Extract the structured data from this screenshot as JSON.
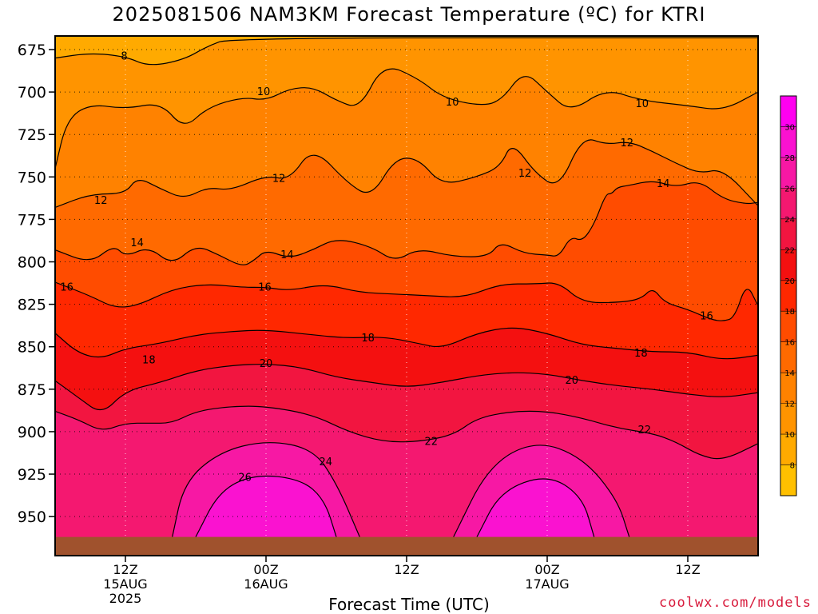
{
  "chart_data": {
    "type": "heatmap",
    "title": "2025081506 NAM3KM Forecast Temperature (ºC) for KTRI",
    "xlabel": "Forecast Time (UTC)",
    "ylabel": "",
    "credit": "coolwx.com/models",
    "x_ticks": [
      {
        "hours": 6,
        "lines": [
          "12Z",
          "15AUG",
          "2025"
        ]
      },
      {
        "hours": 18,
        "lines": [
          "00Z",
          "16AUG"
        ]
      },
      {
        "hours": 30,
        "lines": [
          "12Z"
        ]
      },
      {
        "hours": 42,
        "lines": [
          "00Z",
          "17AUG"
        ]
      },
      {
        "hours": 54,
        "lines": [
          "12Z"
        ]
      }
    ],
    "xlim_hours": [
      0,
      60
    ],
    "y_ticks": [
      675,
      700,
      725,
      750,
      775,
      800,
      825,
      850,
      875,
      900,
      925,
      950
    ],
    "ylim": [
      667,
      973
    ],
    "y_inverted": true,
    "grid": "dotted",
    "colorbar": {
      "labels": [
        "8",
        "10",
        "12",
        "14",
        "16",
        "18",
        "20",
        "22",
        "24",
        "26",
        "28",
        "30"
      ],
      "colors": [
        "#ffc000",
        "#ffaa00",
        "#ff9400",
        "#ff8200",
        "#ff6a00",
        "#ff4c00",
        "#ff2800",
        "#f41010",
        "#f21540",
        "#f41870",
        "#f718a4",
        "#fa12d0",
        "#ff00f0"
      ]
    },
    "contour_levels": [
      "8",
      "10",
      "12",
      "14",
      "16",
      "18",
      "20",
      "22",
      "24",
      "26"
    ],
    "contours": [
      {
        "level": 8,
        "points": [
          [
            0,
            680
          ],
          [
            3,
            677
          ],
          [
            6,
            679
          ],
          [
            8,
            685
          ],
          [
            11,
            681
          ],
          [
            13,
            673
          ],
          [
            15,
            668
          ],
          [
            60,
            668
          ]
        ]
      },
      {
        "level": 10,
        "points": [
          [
            0,
            745
          ],
          [
            1,
            716
          ],
          [
            3,
            707
          ],
          [
            6,
            710
          ],
          [
            9,
            706
          ],
          [
            11,
            722
          ],
          [
            13,
            709
          ],
          [
            16,
            703
          ],
          [
            18,
            705
          ],
          [
            20,
            698
          ],
          [
            22,
            697
          ],
          [
            24,
            705
          ],
          [
            26,
            710
          ],
          [
            28,
            683
          ],
          [
            31,
            692
          ],
          [
            33,
            703
          ],
          [
            36,
            708
          ],
          [
            38,
            706
          ],
          [
            40,
            687
          ],
          [
            42,
            700
          ],
          [
            44,
            712
          ],
          [
            47,
            698
          ],
          [
            50,
            705
          ],
          [
            54,
            708
          ],
          [
            57,
            711
          ],
          [
            60,
            700
          ]
        ]
      },
      {
        "level": 12,
        "points": [
          [
            0,
            768
          ],
          [
            3,
            760
          ],
          [
            6,
            760
          ],
          [
            7,
            750
          ],
          [
            9,
            757
          ],
          [
            11,
            763
          ],
          [
            13,
            756
          ],
          [
            15,
            758
          ],
          [
            18,
            749
          ],
          [
            20,
            752
          ],
          [
            22,
            732
          ],
          [
            25,
            754
          ],
          [
            27,
            762
          ],
          [
            29,
            739
          ],
          [
            31,
            739
          ],
          [
            33,
            755
          ],
          [
            36,
            750
          ],
          [
            38,
            744
          ],
          [
            39,
            729
          ],
          [
            41,
            748
          ],
          [
            43,
            757
          ],
          [
            45,
            726
          ],
          [
            47,
            731
          ],
          [
            49,
            729
          ],
          [
            51,
            735
          ],
          [
            53,
            742
          ],
          [
            55,
            748
          ],
          [
            57,
            745
          ],
          [
            60,
            767
          ]
        ]
      },
      {
        "level": 14,
        "points": [
          [
            0,
            793
          ],
          [
            3,
            801
          ],
          [
            5,
            790
          ],
          [
            6,
            797
          ],
          [
            8,
            791
          ],
          [
            10,
            802
          ],
          [
            12,
            790
          ],
          [
            14,
            796
          ],
          [
            16,
            803
          ],
          [
            17,
            799
          ],
          [
            18,
            793
          ],
          [
            20,
            798
          ],
          [
            22,
            793
          ],
          [
            24,
            786
          ],
          [
            27,
            791
          ],
          [
            29,
            800
          ],
          [
            31,
            792
          ],
          [
            34,
            797
          ],
          [
            37,
            797
          ],
          [
            38,
            788
          ],
          [
            40,
            795
          ],
          [
            42,
            796
          ],
          [
            43,
            797
          ],
          [
            44,
            785
          ],
          [
            45,
            788
          ],
          [
            46,
            778
          ],
          [
            47,
            760
          ],
          [
            47.5,
            760
          ],
          [
            48,
            756
          ],
          [
            49,
            755
          ],
          [
            51,
            752
          ],
          [
            53,
            756
          ],
          [
            55,
            752
          ],
          [
            57,
            763
          ],
          [
            59,
            766
          ],
          [
            60,
            765
          ]
        ]
      },
      {
        "level": 16,
        "points": [
          [
            0,
            812
          ],
          [
            3,
            820
          ],
          [
            5,
            827
          ],
          [
            7,
            826
          ],
          [
            10,
            816
          ],
          [
            13,
            813
          ],
          [
            16,
            815
          ],
          [
            18,
            815
          ],
          [
            20,
            817
          ],
          [
            23,
            813
          ],
          [
            26,
            818
          ],
          [
            29,
            819
          ],
          [
            32,
            820
          ],
          [
            35,
            821
          ],
          [
            38,
            813
          ],
          [
            41,
            813
          ],
          [
            43,
            812
          ],
          [
            45,
            824
          ],
          [
            48,
            824
          ],
          [
            50,
            822
          ],
          [
            51,
            815
          ],
          [
            52,
            824
          ],
          [
            54,
            828
          ],
          [
            56,
            834
          ],
          [
            57,
            835
          ],
          [
            58,
            833
          ],
          [
            59,
            812
          ],
          [
            60,
            826
          ]
        ]
      },
      {
        "level": 18,
        "points": [
          [
            0,
            842
          ],
          [
            2,
            854
          ],
          [
            4,
            857
          ],
          [
            6,
            851
          ],
          [
            9,
            848
          ],
          [
            12,
            843
          ],
          [
            15,
            841
          ],
          [
            18,
            840
          ],
          [
            22,
            843
          ],
          [
            25,
            845
          ],
          [
            28,
            844
          ],
          [
            31,
            848
          ],
          [
            33,
            851
          ],
          [
            36,
            842
          ],
          [
            39,
            838
          ],
          [
            42,
            842
          ],
          [
            45,
            849
          ],
          [
            48,
            851
          ],
          [
            51,
            853
          ],
          [
            54,
            853
          ],
          [
            57,
            858
          ],
          [
            60,
            855
          ]
        ]
      },
      {
        "level": 20,
        "points": [
          [
            0,
            870
          ],
          [
            2,
            880
          ],
          [
            4,
            890
          ],
          [
            6,
            876
          ],
          [
            9,
            871
          ],
          [
            12,
            864
          ],
          [
            15,
            861
          ],
          [
            18,
            860
          ],
          [
            21,
            862
          ],
          [
            24,
            868
          ],
          [
            27,
            871
          ],
          [
            30,
            874
          ],
          [
            33,
            871
          ],
          [
            36,
            867
          ],
          [
            39,
            865
          ],
          [
            42,
            866
          ],
          [
            45,
            870
          ],
          [
            48,
            873
          ],
          [
            51,
            875
          ],
          [
            54,
            878
          ],
          [
            57,
            880
          ],
          [
            60,
            877
          ]
        ]
      },
      {
        "level": 22,
        "points": [
          [
            0,
            888
          ],
          [
            2,
            893
          ],
          [
            4,
            900
          ],
          [
            6,
            895
          ],
          [
            8,
            895
          ],
          [
            10,
            895
          ],
          [
            12,
            888
          ],
          [
            15,
            885
          ],
          [
            18,
            885
          ],
          [
            22,
            890
          ],
          [
            25,
            900
          ],
          [
            28,
            906
          ],
          [
            31,
            906
          ],
          [
            34,
            902
          ],
          [
            36,
            892
          ],
          [
            39,
            888
          ],
          [
            42,
            888
          ],
          [
            45,
            892
          ],
          [
            48,
            898
          ],
          [
            51,
            901
          ],
          [
            53,
            906
          ],
          [
            55,
            914
          ],
          [
            57,
            917
          ],
          [
            60,
            907
          ]
        ]
      },
      {
        "level": 24,
        "points": [
          [
            10,
            962
          ],
          [
            11,
            930
          ],
          [
            14,
            912
          ],
          [
            18,
            905
          ],
          [
            22,
            910
          ],
          [
            24,
            930
          ],
          [
            26,
            962
          ]
        ]
      },
      {
        "level": 26,
        "points": [
          [
            12,
            962
          ],
          [
            14,
            935
          ],
          [
            17,
            925
          ],
          [
            21,
            928
          ],
          [
            23,
            940
          ],
          [
            24,
            962
          ]
        ]
      },
      {
        "level": 24,
        "points": [
          [
            34,
            962
          ],
          [
            37,
            920
          ],
          [
            41,
            905
          ],
          [
            45,
            915
          ],
          [
            48,
            940
          ],
          [
            49,
            962
          ]
        ]
      },
      {
        "level": 26,
        "points": [
          [
            36,
            962
          ],
          [
            38,
            935
          ],
          [
            42,
            925
          ],
          [
            45,
            938
          ],
          [
            46,
            962
          ]
        ]
      }
    ],
    "contour_labels": [
      {
        "level": 8,
        "text": "8",
        "hours": 5.9,
        "p": 679
      },
      {
        "level": 10,
        "text": "10",
        "hours": 17.8,
        "p": 700
      },
      {
        "level": 10,
        "text": "10",
        "hours": 33.9,
        "p": 706
      },
      {
        "level": 10,
        "text": "10",
        "hours": 50.1,
        "p": 707
      },
      {
        "level": 12,
        "text": "12",
        "hours": 3.9,
        "p": 764
      },
      {
        "level": 12,
        "text": "12",
        "hours": 19.1,
        "p": 751
      },
      {
        "level": 12,
        "text": "12",
        "hours": 40.1,
        "p": 748
      },
      {
        "level": 12,
        "text": "12",
        "hours": 48.8,
        "p": 730
      },
      {
        "level": 14,
        "text": "14",
        "hours": 7.0,
        "p": 789
      },
      {
        "level": 14,
        "text": "14",
        "hours": 19.8,
        "p": 796
      },
      {
        "level": 14,
        "text": "14",
        "hours": 51.9,
        "p": 754
      },
      {
        "level": 16,
        "text": "16",
        "hours": 1.0,
        "p": 815
      },
      {
        "level": 16,
        "text": "16",
        "hours": 17.9,
        "p": 815
      },
      {
        "level": 16,
        "text": "16",
        "hours": 55.6,
        "p": 832
      },
      {
        "level": 18,
        "text": "18",
        "hours": 8.0,
        "p": 858
      },
      {
        "level": 18,
        "text": "18",
        "hours": 26.7,
        "p": 845
      },
      {
        "level": 18,
        "text": "18",
        "hours": 50.0,
        "p": 854
      },
      {
        "level": 20,
        "text": "20",
        "hours": 18.0,
        "p": 860
      },
      {
        "level": 20,
        "text": "20",
        "hours": 44.1,
        "p": 870
      },
      {
        "level": 22,
        "text": "22",
        "hours": 32.1,
        "p": 906
      },
      {
        "level": 22,
        "text": "22",
        "hours": 50.3,
        "p": 899
      },
      {
        "level": 24,
        "text": "24",
        "hours": 23.1,
        "p": 918
      },
      {
        "level": 26,
        "text": "26",
        "hours": 16.2,
        "p": 927
      }
    ]
  }
}
